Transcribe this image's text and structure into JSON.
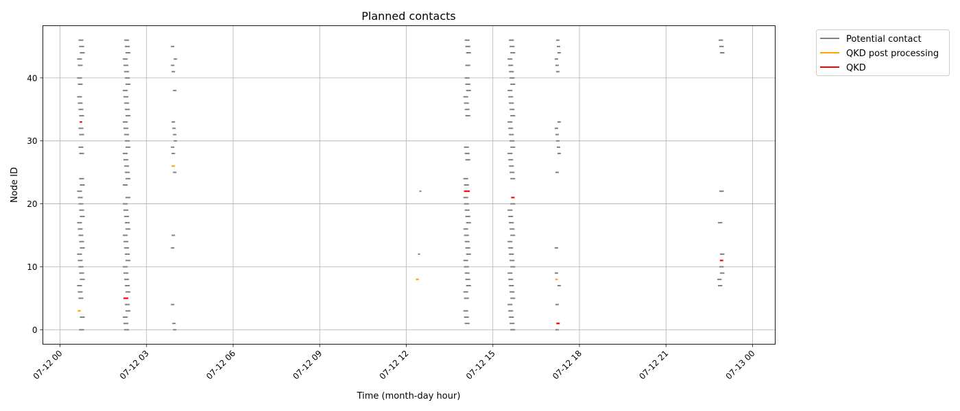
{
  "chart_data": {
    "type": "scatter",
    "title": "Planned contacts",
    "xlabel": "Time (month-day hour)",
    "ylabel": "Node ID",
    "xlim": [
      "07-12 00:00",
      "07-13 00:00"
    ],
    "ylim": [
      -2.3,
      48.3
    ],
    "x_ticks": [
      "07-12 00",
      "07-12 03",
      "07-12 06",
      "07-12 09",
      "07-12 12",
      "07-12 15",
      "07-12 18",
      "07-12 21",
      "07-13 00"
    ],
    "y_ticks": [
      0,
      10,
      20,
      30,
      40
    ],
    "grid": true,
    "legend_position": "outside top-right",
    "series": [
      {
        "name": "Potential contact",
        "color": "#808080",
        "windows": [
          {
            "start": "07-12 00:37",
            "end": "07-12 00:50",
            "nodes": [
              46,
              45,
              44,
              43,
              42,
              40,
              39,
              37,
              36,
              35,
              34,
              32,
              31,
              29,
              28,
              24,
              23,
              22,
              21,
              20,
              19,
              18,
              17,
              16,
              15,
              14,
              13,
              12,
              11,
              10,
              9,
              8,
              7,
              6,
              5,
              2,
              0
            ]
          },
          {
            "start": "07-12 02:12",
            "end": "07-12 02:25",
            "nodes": [
              46,
              45,
              44,
              43,
              42,
              41,
              40,
              39,
              38,
              37,
              36,
              35,
              34,
              33,
              32,
              31,
              30,
              29,
              28,
              27,
              26,
              25,
              24,
              23,
              21,
              20,
              19,
              18,
              17,
              16,
              15,
              14,
              13,
              12,
              11,
              10,
              9,
              8,
              7,
              6,
              4,
              3,
              2,
              1,
              0
            ]
          },
          {
            "start": "07-12 03:52",
            "end": "07-12 04:02",
            "nodes": [
              45,
              43,
              42,
              41,
              38,
              33,
              32,
              31,
              30,
              29,
              28,
              25,
              15,
              13,
              4,
              1,
              0
            ]
          },
          {
            "start": "07-12 12:23",
            "end": "07-12 12:30",
            "nodes": [
              22,
              12
            ]
          },
          {
            "start": "07-12 14:00",
            "end": "07-12 14:13",
            "nodes": [
              46,
              45,
              44,
              42,
              40,
              39,
              38,
              37,
              36,
              35,
              34,
              29,
              28,
              27,
              24,
              23,
              21,
              20,
              19,
              18,
              17,
              16,
              15,
              14,
              13,
              12,
              11,
              10,
              9,
              8,
              7,
              6,
              5,
              3,
              2,
              1
            ]
          },
          {
            "start": "07-12 15:32",
            "end": "07-12 15:45",
            "nodes": [
              46,
              45,
              44,
              43,
              42,
              41,
              40,
              39,
              38,
              37,
              36,
              35,
              34,
              33,
              32,
              31,
              30,
              29,
              28,
              27,
              26,
              25,
              24,
              20,
              19,
              18,
              17,
              16,
              15,
              14,
              13,
              12,
              11,
              10,
              9,
              8,
              7,
              6,
              5,
              4,
              3,
              2,
              1,
              0
            ]
          },
          {
            "start": "07-12 17:10",
            "end": "07-12 17:20",
            "nodes": [
              46,
              45,
              44,
              43,
              42,
              41,
              33,
              32,
              31,
              30,
              29,
              28,
              25,
              13,
              9,
              7,
              4,
              0
            ]
          },
          {
            "start": "07-12 22:48",
            "end": "07-12 23:00",
            "nodes": [
              46,
              45,
              44,
              22,
              17,
              12,
              10,
              9,
              8,
              7
            ]
          }
        ]
      },
      {
        "name": "QKD post processing",
        "color": "#ffa500",
        "segments": [
          {
            "node": 3,
            "start": "07-12 00:37",
            "end": "07-12 00:43"
          },
          {
            "node": 26,
            "start": "07-12 03:52",
            "end": "07-12 03:59"
          },
          {
            "node": 8,
            "start": "07-12 12:20",
            "end": "07-12 12:26"
          },
          {
            "node": 8,
            "start": "07-12 17:10",
            "end": "07-12 17:15"
          }
        ]
      },
      {
        "name": "QKD",
        "color": "#ff0000",
        "segments": [
          {
            "node": 33,
            "start": "07-12 00:41",
            "end": "07-12 00:46"
          },
          {
            "node": 5,
            "start": "07-12 02:12",
            "end": "07-12 02:22"
          },
          {
            "node": 22,
            "start": "07-12 14:00",
            "end": "07-12 14:12"
          },
          {
            "node": 21,
            "start": "07-12 15:38",
            "end": "07-12 15:45"
          },
          {
            "node": 1,
            "start": "07-12 17:12",
            "end": "07-12 17:19"
          },
          {
            "node": 11,
            "start": "07-12 22:52",
            "end": "07-12 22:59"
          }
        ]
      }
    ]
  }
}
